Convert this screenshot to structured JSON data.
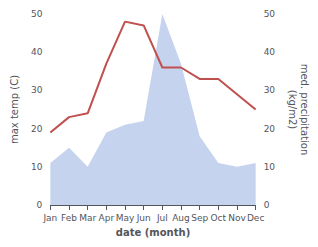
{
  "chart_data": {
    "type": "line",
    "categories": [
      "Jan",
      "Feb",
      "Mar",
      "Apr",
      "May",
      "Jun",
      "Jul",
      "Aug",
      "Sep",
      "Oct",
      "Nov",
      "Dec"
    ],
    "series": [
      {
        "type": "line",
        "color": "#c0504d",
        "values": [
          19,
          23,
          24,
          37,
          48,
          47,
          36,
          36,
          33,
          33,
          29,
          25
        ]
      },
      {
        "type": "area",
        "color": "#c5d3ee",
        "axis": "y2",
        "values": [
          11,
          15,
          10,
          19,
          21,
          22,
          50,
          37,
          18,
          11,
          10,
          11
        ]
      }
    ],
    "xlabel": "date (month)",
    "ylabel": "max temp (C)",
    "y2label": "med. precipitation\n(kg/m2)",
    "ylim": [
      0,
      50
    ],
    "yticks": [
      0,
      10,
      20,
      30,
      40,
      50
    ],
    "y2lim": [
      0,
      50
    ],
    "y2ticks": [
      0,
      10,
      20,
      30,
      40,
      50
    ],
    "grid": false
  }
}
